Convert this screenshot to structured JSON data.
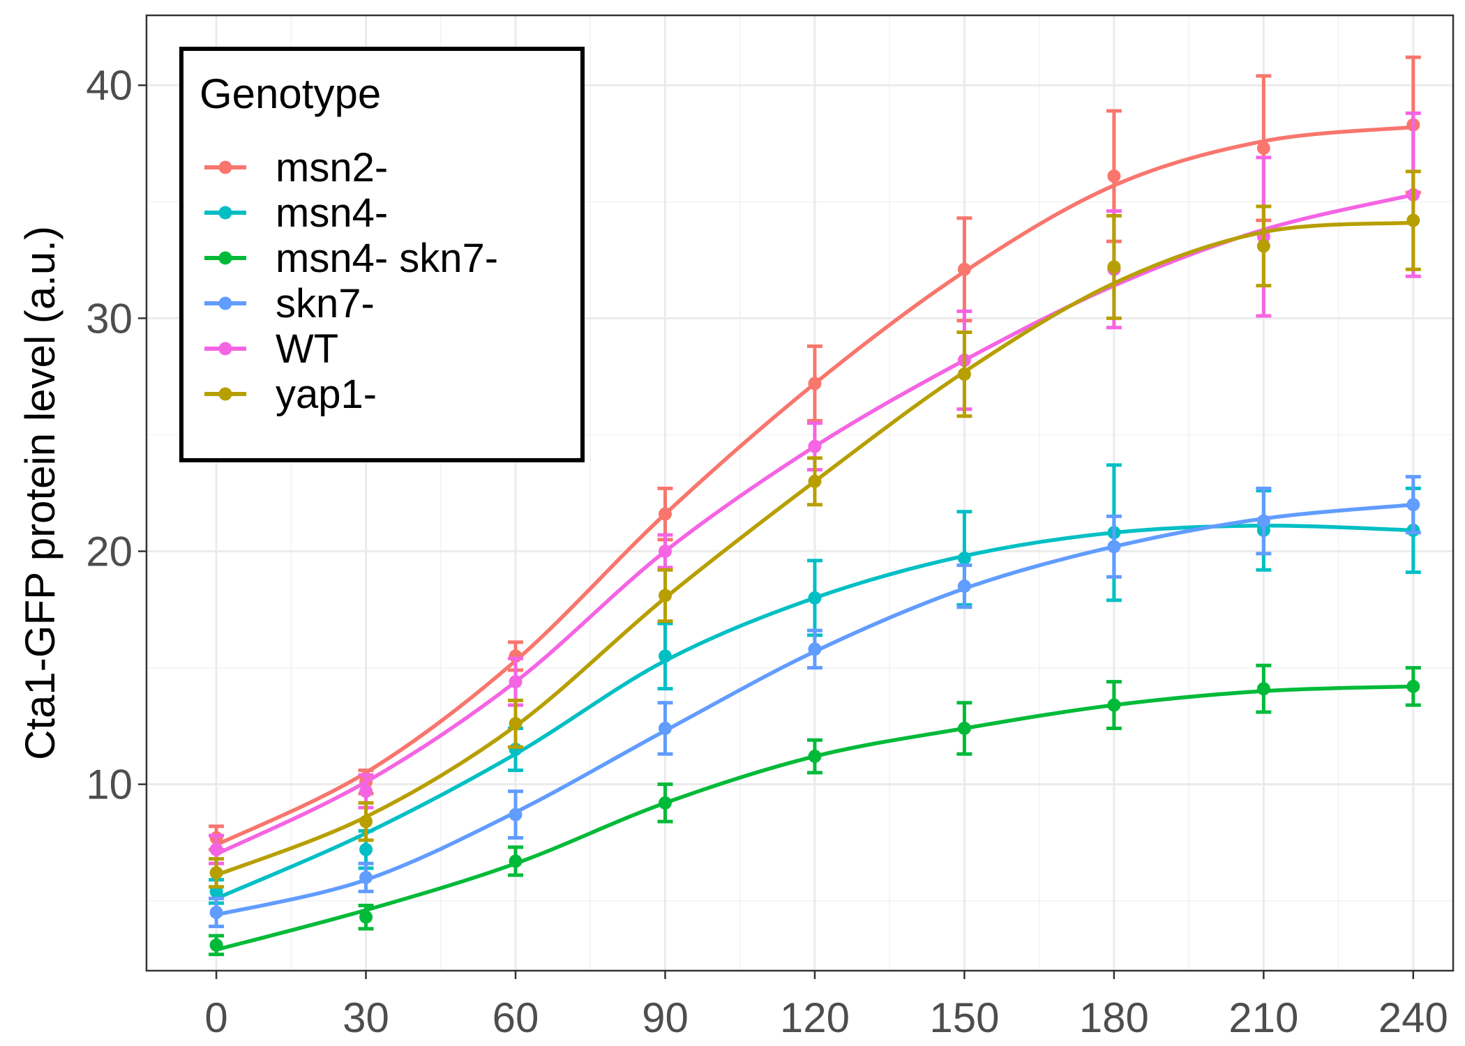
{
  "chart_data": {
    "type": "line",
    "title": "",
    "xlabel": "",
    "ylabel": "Cta1-GFP protein level (a.u.)",
    "x": [
      0,
      30,
      60,
      90,
      120,
      150,
      180,
      210,
      240
    ],
    "xlim": [
      -14,
      248
    ],
    "ylim": [
      2,
      43
    ],
    "x_ticks": [
      0,
      30,
      60,
      90,
      120,
      150,
      180,
      210,
      240
    ],
    "x_tick_labels": [
      "0",
      "30",
      "60",
      "90",
      "120",
      "150",
      "180",
      "210",
      "240"
    ],
    "y_ticks": [
      10,
      20,
      30,
      40
    ],
    "y_tick_labels": [
      "10",
      "20",
      "30",
      "40"
    ],
    "grid": true,
    "legend": {
      "title": "Genotype",
      "position": "top-left"
    },
    "series": [
      {
        "name": "msn2-",
        "color": "#F8766D",
        "values": [
          7.7,
          10.1,
          15.5,
          21.6,
          27.2,
          32.1,
          36.1,
          37.3,
          38.3
        ],
        "errors": [
          0.5,
          0.5,
          0.6,
          1.1,
          1.6,
          2.2,
          2.8,
          3.1,
          2.9
        ],
        "fit": [
          7.4,
          10.5,
          15.3,
          21.6,
          27.2,
          32.0,
          35.7,
          37.6,
          38.2
        ]
      },
      {
        "name": "msn4-",
        "color": "#00BFC4",
        "values": [
          5.4,
          7.2,
          11.5,
          15.5,
          18.0,
          19.7,
          20.8,
          20.9,
          20.9
        ],
        "errors": [
          0.5,
          0.8,
          0.9,
          1.4,
          1.6,
          2.0,
          2.9,
          1.7,
          1.8
        ],
        "fit": [
          5.1,
          7.9,
          11.3,
          15.3,
          18.0,
          19.8,
          20.8,
          21.1,
          20.9
        ]
      },
      {
        "name": "msn4- skn7-",
        "color": "#00BA38",
        "values": [
          3.1,
          4.3,
          6.7,
          9.2,
          11.2,
          12.4,
          13.4,
          14.1,
          14.2
        ],
        "errors": [
          0.4,
          0.5,
          0.6,
          0.8,
          0.7,
          1.1,
          1.0,
          1.0,
          0.8
        ],
        "fit": [
          2.9,
          4.6,
          6.6,
          9.2,
          11.2,
          12.4,
          13.4,
          14.0,
          14.2
        ]
      },
      {
        "name": "skn7-",
        "color": "#619CFF",
        "values": [
          4.5,
          6.0,
          8.7,
          12.4,
          15.8,
          18.5,
          20.2,
          21.3,
          22.0
        ],
        "errors": [
          0.6,
          0.6,
          1.0,
          1.1,
          0.8,
          0.9,
          1.3,
          1.4,
          1.2
        ],
        "fit": [
          4.4,
          5.9,
          8.8,
          12.3,
          15.7,
          18.4,
          20.2,
          21.4,
          22.0
        ]
      },
      {
        "name": "WT",
        "color": "#F564E3",
        "values": [
          7.2,
          9.7,
          14.4,
          20.0,
          24.5,
          28.2,
          32.1,
          33.5,
          35.3
        ],
        "errors": [
          0.6,
          0.7,
          1.0,
          0.7,
          1.0,
          2.1,
          2.5,
          3.4,
          3.5
        ],
        "fit": [
          7.0,
          10.1,
          14.4,
          20.0,
          24.5,
          28.2,
          31.4,
          33.8,
          35.3
        ]
      },
      {
        "name": "yap1-",
        "color": "#B79F00",
        "values": [
          6.2,
          8.4,
          12.6,
          18.1,
          23.0,
          27.6,
          32.2,
          33.1,
          34.2
        ],
        "errors": [
          0.6,
          0.8,
          1.0,
          1.1,
          1.0,
          1.8,
          2.2,
          1.7,
          2.1
        ],
        "fit": [
          6.1,
          8.6,
          12.5,
          18.0,
          23.0,
          27.7,
          31.5,
          33.7,
          34.1
        ]
      }
    ]
  }
}
